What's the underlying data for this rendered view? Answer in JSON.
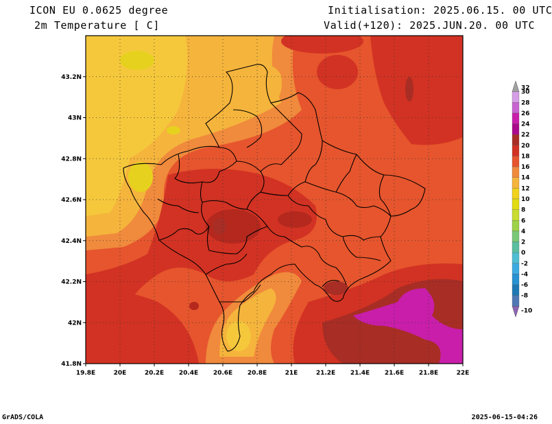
{
  "header": {
    "model": "ICON EU 0.0625 degree",
    "variable": "2m Temperature [ C]",
    "init": "Initialisation: 2025.06.15. 00 UTC",
    "valid": "Valid(+120): 2025.JUN.20. 00 UTC"
  },
  "footer": {
    "left": "GrADS/COLA",
    "right": "2025-06-15-04:26"
  },
  "map": {
    "lon_range": [
      19.8,
      22.0
    ],
    "lat_range": [
      41.8,
      43.4
    ],
    "x_ticks": [
      {
        "value": 19.8,
        "label": "19.8E"
      },
      {
        "value": 20.0,
        "label": "20E"
      },
      {
        "value": 20.2,
        "label": "20.2E"
      },
      {
        "value": 20.4,
        "label": "20.4E"
      },
      {
        "value": 20.6,
        "label": "20.6E"
      },
      {
        "value": 20.8,
        "label": "20.8E"
      },
      {
        "value": 21.0,
        "label": "21E"
      },
      {
        "value": 21.2,
        "label": "21.2E"
      },
      {
        "value": 21.4,
        "label": "21.4E"
      },
      {
        "value": 21.6,
        "label": "21.6E"
      },
      {
        "value": 21.8,
        "label": "21.8E"
      },
      {
        "value": 22.0,
        "label": "22E"
      }
    ],
    "y_ticks": [
      {
        "value": 41.8,
        "label": "41.8N"
      },
      {
        "value": 42.0,
        "label": "42N"
      },
      {
        "value": 42.2,
        "label": "42.2N"
      },
      {
        "value": 42.4,
        "label": "42.4N"
      },
      {
        "value": 42.6,
        "label": "42.6N"
      },
      {
        "value": 42.8,
        "label": "42.8N"
      },
      {
        "value": 43.0,
        "label": "43N"
      },
      {
        "value": 43.2,
        "label": "43.2N"
      }
    ],
    "grid": true
  },
  "colorbar": {
    "labels": [
      "32",
      "30",
      "28",
      "26",
      "24",
      "22",
      "20",
      "18",
      "16",
      "14",
      "12",
      "10",
      "8",
      "6",
      "4",
      "2",
      "0",
      "-2",
      "-4",
      "-6",
      "-8",
      "-10"
    ],
    "colors": [
      "#a0a0a0",
      "#d69ee6",
      "#c864d2",
      "#c81eaa",
      "#aa0a8c",
      "#a82d25",
      "#d23223",
      "#e6552d",
      "#f08a3c",
      "#f5b43c",
      "#f0d21e",
      "#e1dc14",
      "#c8dc32",
      "#9ed248",
      "#78c878",
      "#5abea0",
      "#50bed2",
      "#3caae1",
      "#2891d2",
      "#1e78b4",
      "#5078b4",
      "#8c64b4"
    ]
  }
}
